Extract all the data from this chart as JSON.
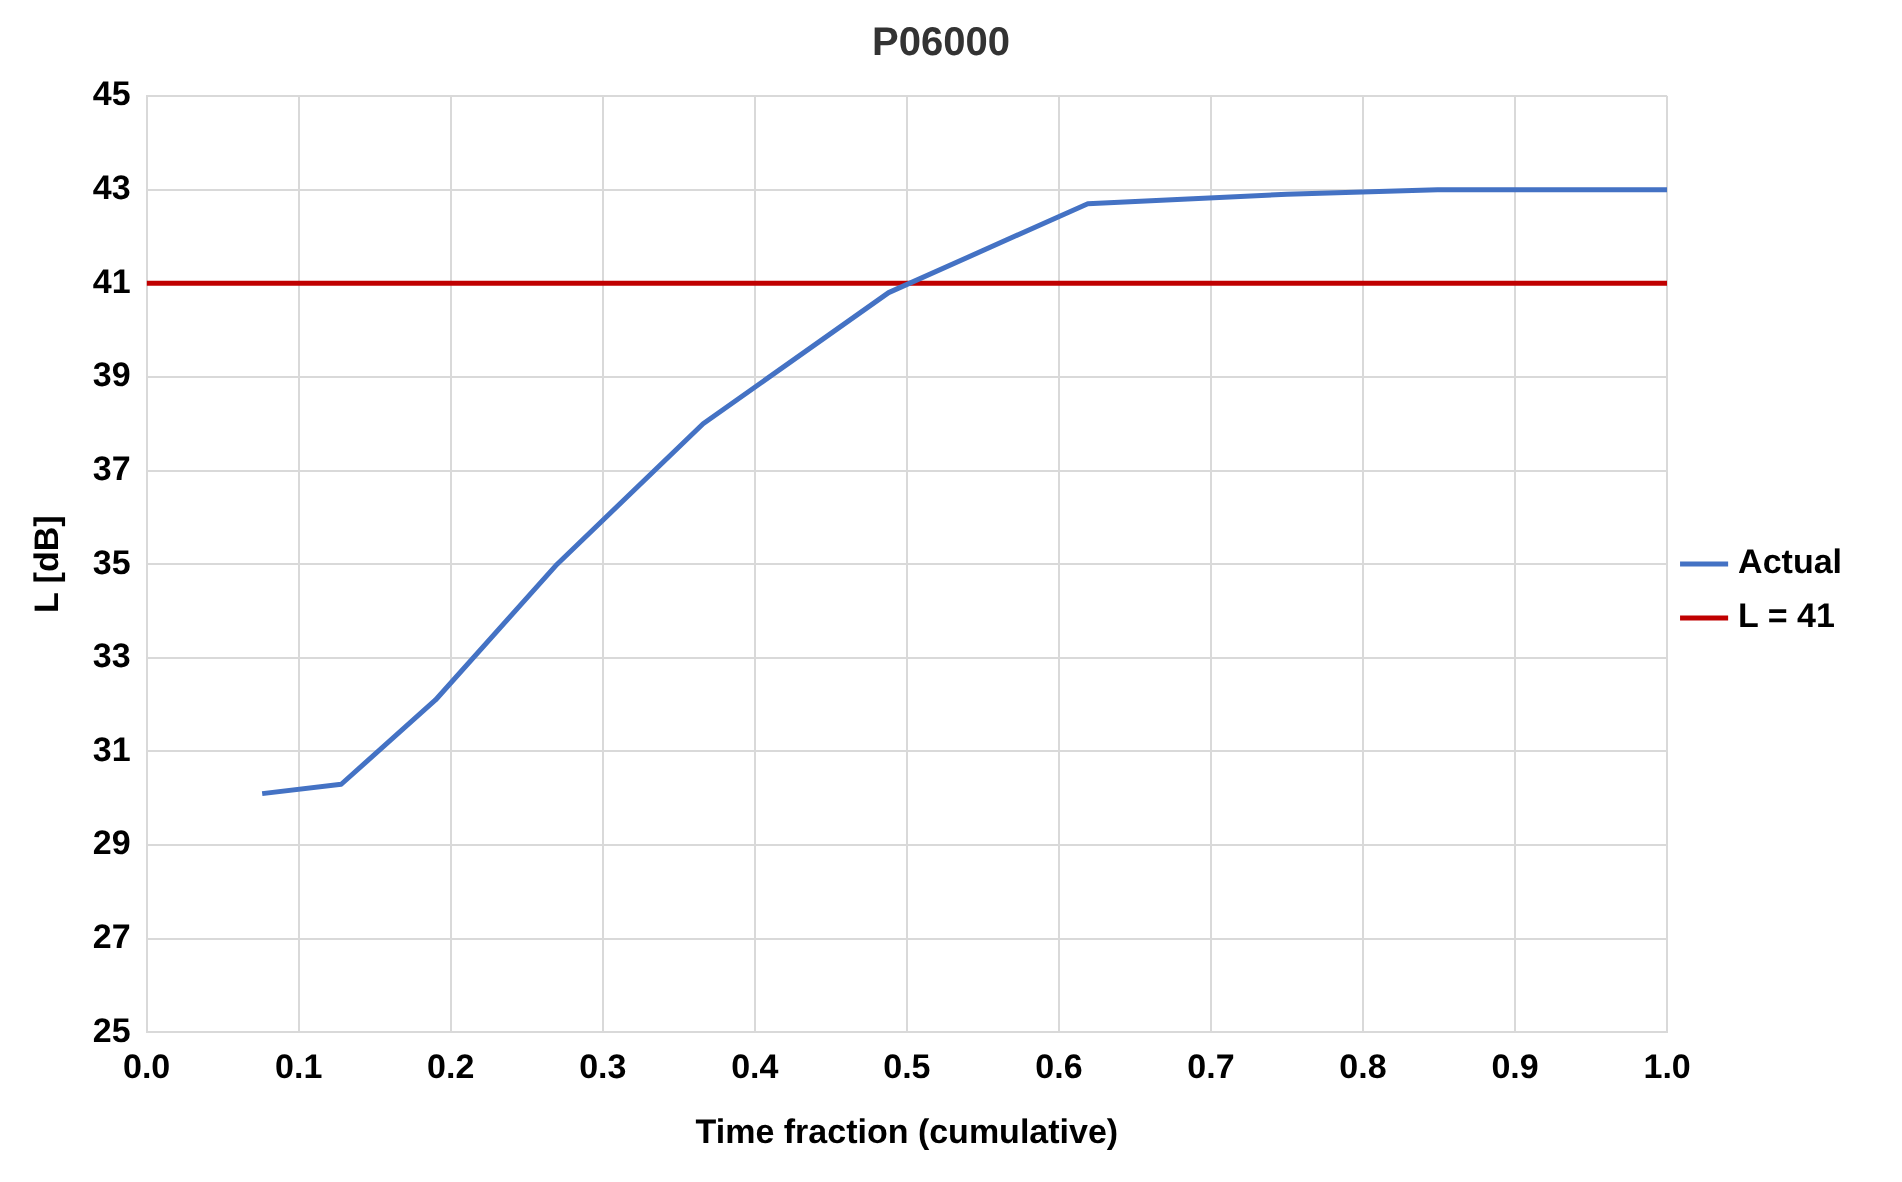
{
  "chart_data": {
    "type": "line",
    "title": "P06000",
    "xlabel": "Time fraction (cumulative)",
    "ylabel": "L [dB]",
    "series": [
      {
        "name": "Actual",
        "color": "#4472c4",
        "x": [
          0.076,
          0.128,
          0.19,
          0.27,
          0.366,
          0.488,
          0.619,
          0.75,
          0.849,
          1.0
        ],
        "values": [
          30.1,
          30.3,
          32.1,
          35.0,
          38.0,
          40.8,
          42.7,
          42.9,
          43.0,
          43.0
        ]
      },
      {
        "name": "L = 41",
        "color": "#c00000",
        "x": [
          0.0,
          1.0
        ],
        "values": [
          41,
          41
        ]
      }
    ],
    "xlim": [
      0,
      1
    ],
    "xticks": [
      {
        "value": 0,
        "label": "0.0"
      },
      0.1,
      0.2,
      0.3,
      0.4,
      0.5,
      0.6,
      0.7,
      0.8,
      0.9,
      {
        "value": 1,
        "label": "1.0"
      }
    ],
    "ylim": [
      25,
      45
    ],
    "yticks": [
      25,
      27,
      29,
      31,
      33,
      35,
      37,
      39,
      41,
      43,
      45
    ],
    "grid": true,
    "legend": "right",
    "marker": "none",
    "line_style": "solid"
  }
}
